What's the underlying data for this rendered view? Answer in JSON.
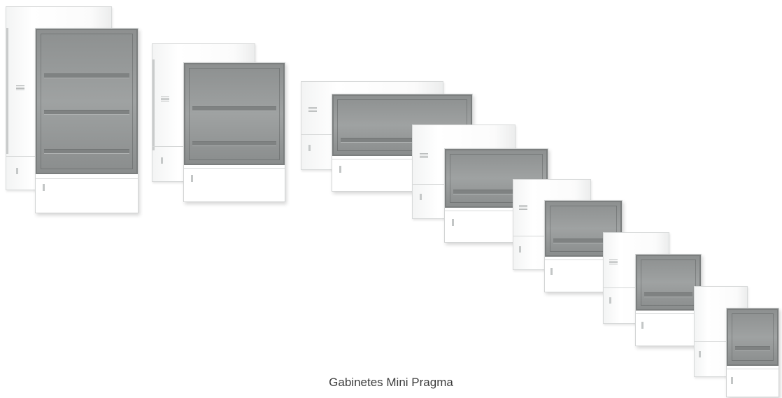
{
  "caption": "Gabinetes Mini Pragma",
  "products": [
    {
      "name": "cabinet-3-rows-open",
      "rows": 3
    },
    {
      "name": "cabinet-2-rows-open",
      "rows": 2
    },
    {
      "name": "cabinet-1-row-large",
      "rows": 1
    },
    {
      "name": "cabinet-1-row-medium",
      "rows": 1
    },
    {
      "name": "cabinet-1-row-small",
      "rows": 1
    },
    {
      "name": "cabinet-1-row-mini",
      "rows": 1
    },
    {
      "name": "cabinet-1-row-micro",
      "rows": 1
    }
  ],
  "colors": {
    "background": "#ffffff",
    "panel": "#ffffff",
    "smoked_door": "#9a9d9d",
    "caption": "#3c3c3c"
  }
}
